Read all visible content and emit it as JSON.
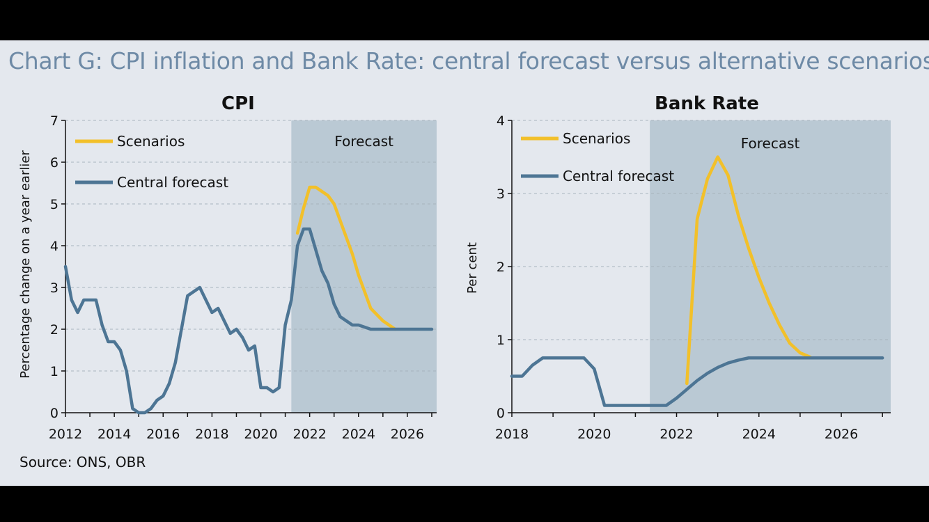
{
  "title": "Chart G: CPI inflation and Bank Rate: central forecast versus alternative scenarios",
  "source": "Source: ONS, OBR",
  "colors": {
    "scenarios": "#f2c02a",
    "central": "#4d7594",
    "forecast_shade": "#bac9d4",
    "background": "#e4e8ee"
  },
  "chart_data": [
    {
      "type": "line",
      "title": "CPI",
      "ylabel": "Percentage change on a year earlier",
      "xlim": [
        2012,
        2027.2
      ],
      "ylim": [
        0,
        7
      ],
      "xticks": [
        "2012",
        "2014",
        "2016",
        "2018",
        "2020",
        "2022",
        "2024",
        "2026"
      ],
      "yticks": [
        "0",
        "1",
        "2",
        "3",
        "4",
        "5",
        "6",
        "7"
      ],
      "forecast_start": 2021.25,
      "forecast_label": "Forecast",
      "legend": [
        "Scenarios",
        "Central forecast"
      ],
      "legend_position": "top-left",
      "grid": "horizontal dashed",
      "series": [
        {
          "name": "Central forecast",
          "x": [
            2012.0,
            2012.25,
            2012.5,
            2012.75,
            2013.0,
            2013.25,
            2013.5,
            2013.75,
            2014.0,
            2014.25,
            2014.5,
            2014.75,
            2015.0,
            2015.25,
            2015.5,
            2015.75,
            2016.0,
            2016.25,
            2016.5,
            2016.75,
            2017.0,
            2017.25,
            2017.5,
            2017.75,
            2018.0,
            2018.25,
            2018.5,
            2018.75,
            2019.0,
            2019.25,
            2019.5,
            2019.75,
            2020.0,
            2020.25,
            2020.5,
            2020.75,
            2021.0,
            2021.25,
            2021.5,
            2021.75,
            2022.0,
            2022.25,
            2022.5,
            2022.75,
            2023.0,
            2023.25,
            2023.5,
            2023.75,
            2024.0,
            2024.5,
            2025.0,
            2025.5,
            2026.0,
            2026.5,
            2027.0
          ],
          "values": [
            3.5,
            2.7,
            2.4,
            2.7,
            2.7,
            2.7,
            2.1,
            1.7,
            1.7,
            1.5,
            1.0,
            0.1,
            0.0,
            0.0,
            0.1,
            0.3,
            0.4,
            0.7,
            1.2,
            2.0,
            2.8,
            2.9,
            3.0,
            2.7,
            2.4,
            2.5,
            2.2,
            1.9,
            2.0,
            1.8,
            1.5,
            1.6,
            0.6,
            0.6,
            0.5,
            0.6,
            2.1,
            2.7,
            4.0,
            4.4,
            4.4,
            3.9,
            3.4,
            3.1,
            2.6,
            2.3,
            2.2,
            2.1,
            2.1,
            2.0,
            2.0,
            2.0,
            2.0,
            2.0,
            2.0
          ]
        },
        {
          "name": "Scenarios",
          "x": [
            2021.5,
            2021.75,
            2022.0,
            2022.25,
            2022.5,
            2022.75,
            2023.0,
            2023.25,
            2023.5,
            2023.75,
            2024.0,
            2024.25,
            2024.5,
            2024.75,
            2025.0,
            2025.25,
            2025.5
          ],
          "values": [
            4.3,
            4.9,
            5.4,
            5.4,
            5.3,
            5.2,
            5.0,
            4.6,
            4.2,
            3.8,
            3.3,
            2.9,
            2.5,
            2.35,
            2.2,
            2.1,
            2.0
          ]
        }
      ]
    },
    {
      "type": "line",
      "title": "Bank Rate",
      "ylabel": "Per cent",
      "xlim": [
        2018,
        2027.2
      ],
      "ylim": [
        0,
        4
      ],
      "xticks": [
        "2018",
        "2020",
        "2022",
        "2024",
        "2026"
      ],
      "yticks": [
        "0",
        "1",
        "2",
        "3",
        "4"
      ],
      "forecast_start": 2021.35,
      "forecast_label": "Forecast",
      "legend": [
        "Scenarios",
        "Central forecast"
      ],
      "legend_position": "top-left",
      "grid": "horizontal dashed",
      "series": [
        {
          "name": "Central forecast",
          "x": [
            2018.0,
            2018.25,
            2018.5,
            2018.75,
            2019.0,
            2019.25,
            2019.5,
            2019.75,
            2020.0,
            2020.25,
            2020.5,
            2020.75,
            2021.0,
            2021.25,
            2021.5,
            2021.75,
            2022.0,
            2022.25,
            2022.5,
            2022.75,
            2023.0,
            2023.25,
            2023.5,
            2023.75,
            2024.0,
            2024.5,
            2025.0,
            2025.5,
            2026.0,
            2026.5,
            2027.0
          ],
          "values": [
            0.5,
            0.5,
            0.65,
            0.75,
            0.75,
            0.75,
            0.75,
            0.75,
            0.6,
            0.1,
            0.1,
            0.1,
            0.1,
            0.1,
            0.1,
            0.1,
            0.2,
            0.32,
            0.44,
            0.54,
            0.62,
            0.68,
            0.72,
            0.75,
            0.75,
            0.75,
            0.75,
            0.75,
            0.75,
            0.75,
            0.75
          ]
        },
        {
          "name": "Scenarios",
          "x": [
            2022.25,
            2022.5,
            2022.75,
            2023.0,
            2023.25,
            2023.5,
            2023.75,
            2024.0,
            2024.25,
            2024.5,
            2024.75,
            2025.0,
            2025.25
          ],
          "values": [
            0.4,
            2.65,
            3.2,
            3.5,
            3.25,
            2.7,
            2.25,
            1.85,
            1.5,
            1.2,
            0.95,
            0.82,
            0.76
          ]
        }
      ]
    }
  ]
}
